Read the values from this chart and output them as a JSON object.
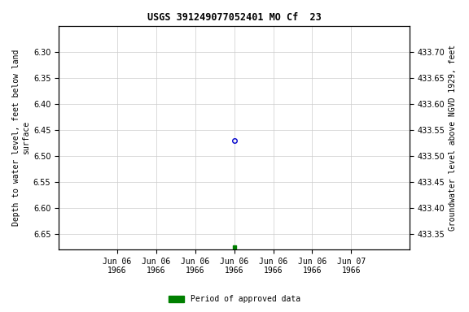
{
  "title": "USGS 391249077052401 MO Cf  23",
  "ylabel_left": "Depth to water level, feet below land\nsurface",
  "ylabel_right": "Groundwater level above NGVD 1929, feet",
  "ylim_left": [
    6.68,
    6.25
  ],
  "ylim_right": [
    433.32,
    433.75
  ],
  "yticks_left": [
    6.3,
    6.35,
    6.4,
    6.45,
    6.5,
    6.55,
    6.6,
    6.65
  ],
  "yticks_right": [
    433.7,
    433.65,
    433.6,
    433.55,
    433.5,
    433.45,
    433.4,
    433.35
  ],
  "data_point_x_hours": 12,
  "data_point_y": 6.47,
  "data_point_color": "#0000cc",
  "data_point_marker": "o",
  "data_point_facecolor": "none",
  "data_point_size": 4,
  "green_point_x_hours": 12,
  "green_point_y": 6.675,
  "green_point_color": "#008000",
  "green_point_marker": "s",
  "green_point_size": 3,
  "legend_label": "Period of approved data",
  "legend_color": "#008000",
  "background_color": "#ffffff",
  "grid_color": "#cccccc",
  "xlim_start_hours": -6,
  "xlim_end_hours": 30,
  "xtick_hours": [
    0,
    4,
    8,
    12,
    16,
    20,
    24
  ],
  "xtick_labels": [
    "Jun 06\n1966",
    "Jun 06\n1966",
    "Jun 06\n1966",
    "Jun 06\n1966",
    "Jun 06\n1966",
    "Jun 06\n1966",
    "Jun 07\n1966"
  ],
  "font_family": "monospace",
  "title_fontsize": 8.5,
  "tick_fontsize": 7,
  "label_fontsize": 7
}
